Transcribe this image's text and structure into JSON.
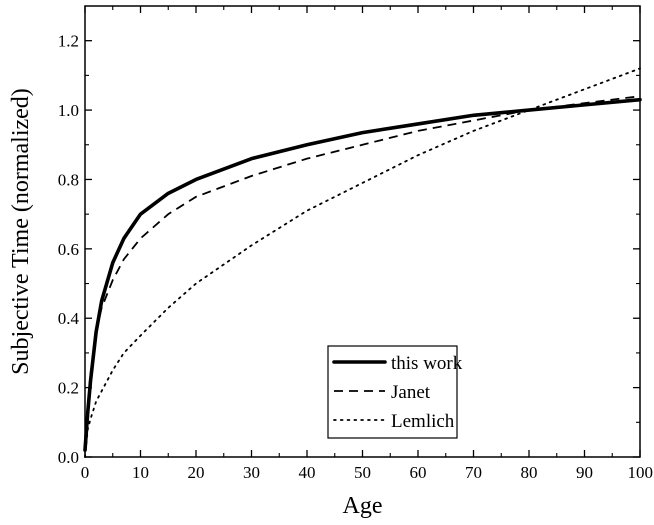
{
  "chart_data": {
    "type": "line",
    "title": "",
    "xlabel": "Age",
    "ylabel": "Subjective Time (normalized)",
    "xlim": [
      0,
      100
    ],
    "ylim": [
      0,
      1.3
    ],
    "x_ticks": [
      0,
      10,
      20,
      30,
      40,
      50,
      60,
      70,
      80,
      90,
      100
    ],
    "x_tick_labels": [
      "0",
      "10",
      "20",
      "30",
      "40",
      "50",
      "60",
      "70",
      "80",
      "90",
      "100"
    ],
    "y_ticks": [
      0,
      0.2,
      0.4,
      0.6,
      0.8,
      1.0,
      1.2
    ],
    "y_tick_labels": [
      "0.0",
      "0.2",
      "0.4",
      "0.6",
      "0.8",
      "1.0",
      "1.2"
    ],
    "grid": false,
    "legend_position": "bottom-right",
    "series": [
      {
        "name": "this work",
        "style": "solid-thick",
        "color": "#000000",
        "x": [
          0,
          0.5,
          1,
          2,
          3,
          5,
          7,
          10,
          15,
          20,
          30,
          40,
          50,
          60,
          70,
          80,
          90,
          100
        ],
        "y": [
          0.02,
          0.13,
          0.22,
          0.36,
          0.45,
          0.56,
          0.63,
          0.7,
          0.76,
          0.8,
          0.86,
          0.9,
          0.935,
          0.96,
          0.985,
          1.0,
          1.015,
          1.03
        ]
      },
      {
        "name": "Janet",
        "style": "dashed",
        "color": "#000000",
        "x": [
          0,
          0.5,
          1,
          2,
          3,
          5,
          7,
          10,
          15,
          20,
          30,
          40,
          50,
          60,
          70,
          80,
          90,
          100
        ],
        "y": [
          0.02,
          0.15,
          0.24,
          0.36,
          0.43,
          0.51,
          0.57,
          0.63,
          0.7,
          0.75,
          0.81,
          0.86,
          0.9,
          0.94,
          0.97,
          1.0,
          1.02,
          1.04
        ]
      },
      {
        "name": "Lemlich",
        "style": "dotted",
        "color": "#000000",
        "x": [
          0,
          0.5,
          1,
          2,
          3,
          5,
          7,
          10,
          15,
          20,
          30,
          40,
          50,
          60,
          70,
          80,
          90,
          100
        ],
        "y": [
          0.0,
          0.08,
          0.11,
          0.16,
          0.19,
          0.25,
          0.3,
          0.35,
          0.43,
          0.5,
          0.61,
          0.71,
          0.79,
          0.87,
          0.94,
          1.0,
          1.06,
          1.12
        ]
      }
    ]
  }
}
